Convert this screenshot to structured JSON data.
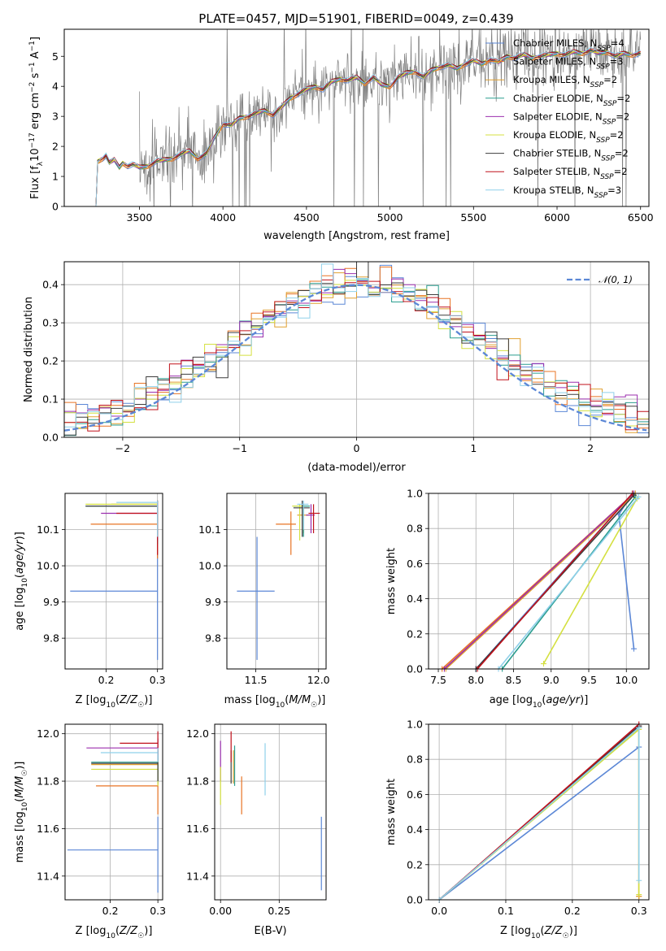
{
  "figure": {
    "title": "PLATE=0457, MJD=51901, FIBERID=0049, z=0.439"
  },
  "models": [
    {
      "name": "Chabrier MILES",
      "nssp": "4",
      "color": "#5b87d6"
    },
    {
      "name": "Salpeter MILES",
      "nssp": "3",
      "color": "#e87424"
    },
    {
      "name": "Kroupa MILES",
      "nssp": "2",
      "color": "#e0a030"
    },
    {
      "name": "Chabrier ELODIE",
      "nssp": "2",
      "color": "#2a9d8f"
    },
    {
      "name": "Salpeter ELODIE",
      "nssp": "2",
      "color": "#9b2fae"
    },
    {
      "name": "Kroupa ELODIE",
      "nssp": "2",
      "color": "#d4e040"
    },
    {
      "name": "Chabrier STELIB",
      "nssp": "2",
      "color": "#3d3d3d"
    },
    {
      "name": "Salpeter STELIB",
      "nssp": "2",
      "color": "#c0101a"
    },
    {
      "name": "Kroupa STELIB",
      "nssp": "3",
      "color": "#8fd0ea"
    }
  ],
  "chart_data": [
    {
      "id": "spectrum",
      "type": "line",
      "title": "PLATE=0457, MJD=51901, FIBERID=0049, z=0.439",
      "xlabel": "wavelength [Angstrom, rest frame]",
      "ylabel": "Flux [f_λ 10^-17 erg cm^-2 s^-1 A^-1]",
      "xlim": [
        3050,
        6550
      ],
      "ylim": [
        0,
        5.9
      ],
      "xticks": [
        3500,
        4000,
        4500,
        5000,
        5500,
        6000,
        6500
      ],
      "yticks": [
        0,
        1,
        2,
        3,
        4,
        5
      ],
      "data_color": "#808080",
      "model_curve": {
        "x": [
          3200,
          3245,
          3250,
          3280,
          3300,
          3320,
          3350,
          3380,
          3400,
          3430,
          3460,
          3500,
          3550,
          3600,
          3650,
          3700,
          3750,
          3800,
          3850,
          3900,
          3950,
          4000,
          4050,
          4100,
          4150,
          4200,
          4250,
          4300,
          4350,
          4400,
          4450,
          4500,
          4550,
          4600,
          4650,
          4700,
          4750,
          4800,
          4850,
          4900,
          4950,
          5000,
          5050,
          5100,
          5150,
          5200,
          5250,
          5300,
          5350,
          5400,
          5450,
          5500,
          5550,
          5600,
          5650,
          5700,
          5750,
          5800,
          5850,
          5900,
          5950,
          6000,
          6050,
          6100,
          6150,
          6200,
          6250,
          6300,
          6350,
          6400,
          6450,
          6500
        ],
        "y": [
          0,
          0,
          1.5,
          1.6,
          1.7,
          1.45,
          1.55,
          1.3,
          1.45,
          1.35,
          1.4,
          1.3,
          1.35,
          1.5,
          1.55,
          1.6,
          1.75,
          1.85,
          1.6,
          1.75,
          2.3,
          2.75,
          2.7,
          2.95,
          3.0,
          3.1,
          3.2,
          3.05,
          3.3,
          3.6,
          3.75,
          3.9,
          4.0,
          3.9,
          4.15,
          4.25,
          4.2,
          4.3,
          4.1,
          4.3,
          4.05,
          4.0,
          4.3,
          4.45,
          4.5,
          4.3,
          4.55,
          4.65,
          4.7,
          4.6,
          4.75,
          4.85,
          4.75,
          4.9,
          4.8,
          5.0,
          4.95,
          5.05,
          4.95,
          5.0,
          5.05,
          5.1,
          5.05,
          5.15,
          5.1,
          5.2,
          5.1,
          5.15,
          5.0,
          5.1,
          5.05,
          5.1
        ]
      }
    },
    {
      "id": "residuals",
      "type": "histogram",
      "xlabel": "(data-model)/error",
      "ylabel": "Normed distribution",
      "xlim": [
        -2.5,
        2.5
      ],
      "ylim": [
        0,
        0.46
      ],
      "xticks": [
        -2,
        -1,
        0,
        1,
        2
      ],
      "yticks": [
        0.0,
        0.1,
        0.2,
        0.3,
        0.4
      ],
      "legend": "𝒩(0, 1)",
      "gaussian": {
        "mean": 0,
        "sigma": 1,
        "style": "dashed",
        "color": "#5b87d6"
      },
      "bin_width": 0.1
    },
    {
      "id": "age_vs_Z",
      "type": "errorbar",
      "xlabel": "Z [log10(Z/Z☉)]",
      "ylabel": "age [log10(age/yr)]",
      "xlim": [
        0.12,
        0.31
      ],
      "ylim": [
        9.715,
        10.2
      ],
      "xticks": [
        0.2,
        0.3
      ],
      "yticks": [
        9.8,
        9.9,
        10.0,
        10.1
      ],
      "points": [
        {
          "x": 0.3,
          "y": 9.93,
          "xlo": 0.13,
          "xhi": 0.3,
          "ylo": 9.74,
          "yhi": 10.08
        },
        {
          "x": 0.3,
          "y": 10.115,
          "xlo": 0.17,
          "xhi": 0.3,
          "ylo": 10.02,
          "yhi": 10.16
        },
        {
          "x": 0.3,
          "y": 10.17,
          "xlo": 0.21,
          "xhi": 0.3,
          "ylo": 10.1,
          "yhi": 10.18
        },
        {
          "x": 0.3,
          "y": 10.165,
          "xlo": 0.16,
          "xhi": 0.3,
          "ylo": 10.06,
          "yhi": 10.17
        },
        {
          "x": 0.3,
          "y": 10.145,
          "xlo": 0.19,
          "xhi": 0.3,
          "ylo": 10.07,
          "yhi": 10.17
        },
        {
          "x": 0.3,
          "y": 10.17,
          "xlo": 0.16,
          "xhi": 0.3,
          "ylo": 10.1,
          "yhi": 10.18
        },
        {
          "x": 0.3,
          "y": 10.165,
          "xlo": 0.16,
          "xhi": 0.3,
          "ylo": 10.08,
          "yhi": 10.18
        },
        {
          "x": 0.3,
          "y": 10.145,
          "xlo": 0.22,
          "xhi": 0.3,
          "ylo": 10.03,
          "yhi": 10.18
        },
        {
          "x": 0.3,
          "y": 10.175,
          "xlo": 0.22,
          "xhi": 0.3,
          "ylo": 10.08,
          "yhi": 10.18
        }
      ]
    },
    {
      "id": "age_vs_mass",
      "type": "errorbar",
      "xlabel": "mass [log10(M/M☉)]",
      "ylabel": "",
      "xlim": [
        11.27,
        12.06
      ],
      "ylim": [
        9.715,
        10.2
      ],
      "xticks": [
        11.5,
        12.0
      ],
      "yticks": [
        9.8,
        9.9,
        10.0,
        10.1
      ],
      "points": [
        {
          "x": 11.51,
          "y": 9.93,
          "xlo": 11.35,
          "xhi": 11.65,
          "ylo": 9.74,
          "yhi": 10.08
        },
        {
          "x": 11.78,
          "y": 10.115,
          "xlo": 11.66,
          "xhi": 11.82,
          "ylo": 10.03,
          "yhi": 10.15
        },
        {
          "x": 11.88,
          "y": 10.14,
          "xlo": 11.83,
          "xhi": 11.92,
          "ylo": 10.09,
          "yhi": 10.17
        },
        {
          "x": 11.88,
          "y": 10.165,
          "xlo": 11.8,
          "xhi": 11.93,
          "ylo": 10.08,
          "yhi": 10.17
        },
        {
          "x": 11.94,
          "y": 10.14,
          "xlo": 11.9,
          "xhi": 11.97,
          "ylo": 10.09,
          "yhi": 10.17
        },
        {
          "x": 11.85,
          "y": 10.165,
          "xlo": 11.79,
          "xhi": 11.88,
          "ylo": 10.07,
          "yhi": 10.17
        },
        {
          "x": 11.87,
          "y": 10.16,
          "xlo": 11.8,
          "xhi": 11.93,
          "ylo": 10.08,
          "yhi": 10.18
        },
        {
          "x": 11.96,
          "y": 10.145,
          "xlo": 11.92,
          "xhi": 12.01,
          "ylo": 10.09,
          "yhi": 10.17
        },
        {
          "x": 11.88,
          "y": 10.17,
          "xlo": 11.83,
          "xhi": 11.92,
          "ylo": 10.1,
          "yhi": 10.18
        }
      ]
    },
    {
      "id": "massweight_vs_age",
      "type": "line",
      "xlabel": "age [log10(age/yr)]",
      "ylabel": "mass weight",
      "xlim": [
        7.37,
        10.3
      ],
      "ylim": [
        0,
        1.0
      ],
      "xticks": [
        7.5,
        8.0,
        8.5,
        9.0,
        9.5,
        10.0
      ],
      "yticks": [
        0.0,
        0.2,
        0.4,
        0.6,
        0.8,
        1.0
      ],
      "series": [
        {
          "x": [
            8.0,
            10.08,
            9.9,
            10.1
          ],
          "y": [
            0.0,
            1.0,
            0.88,
            0.115
          ]
        },
        {
          "x": [
            7.55,
            10.1
          ],
          "y": [
            0.0,
            1.0
          ]
        },
        {
          "x": [
            7.6,
            10.12
          ],
          "y": [
            0.0,
            1.0
          ]
        },
        {
          "x": [
            8.35,
            10.12
          ],
          "y": [
            0.0,
            0.98
          ]
        },
        {
          "x": [
            7.58,
            10.1
          ],
          "y": [
            0.0,
            1.0
          ]
        },
        {
          "x": [
            8.9,
            10.14
          ],
          "y": [
            0.03,
            0.97
          ]
        },
        {
          "x": [
            8.0,
            10.1
          ],
          "y": [
            0.0,
            0.99
          ]
        },
        {
          "x": [
            8.02,
            10.08
          ],
          "y": [
            0.0,
            1.0
          ]
        },
        {
          "x": [
            8.3,
            10.16
          ],
          "y": [
            0.0,
            0.98
          ]
        }
      ]
    },
    {
      "id": "mass_vs_Z",
      "type": "errorbar",
      "xlabel": "Z [log10(Z/Z☉)]",
      "ylabel": "mass [log10(M/M☉)]",
      "xlim": [
        0.105,
        0.31
      ],
      "ylim": [
        11.3,
        12.04
      ],
      "xticks": [
        0.2,
        0.3
      ],
      "yticks": [
        11.4,
        11.6,
        11.8,
        12.0
      ],
      "points": [
        {
          "x": 0.3,
          "y": 11.51,
          "xlo": 0.11,
          "xhi": 0.3,
          "ylo": 11.33,
          "yhi": 11.65
        },
        {
          "x": 0.3,
          "y": 11.78,
          "xlo": 0.17,
          "xhi": 0.3,
          "ylo": 11.66,
          "yhi": 11.82
        },
        {
          "x": 0.3,
          "y": 11.87,
          "xlo": 0.16,
          "xhi": 0.3,
          "ylo": 11.8,
          "yhi": 11.9
        },
        {
          "x": 0.3,
          "y": 11.88,
          "xlo": 0.16,
          "xhi": 0.3,
          "ylo": 11.79,
          "yhi": 11.91
        },
        {
          "x": 0.3,
          "y": 11.94,
          "xlo": 0.15,
          "xhi": 0.3,
          "ylo": 11.89,
          "yhi": 11.98
        },
        {
          "x": 0.3,
          "y": 11.85,
          "xlo": 0.16,
          "xhi": 0.3,
          "ylo": 11.78,
          "yhi": 11.89
        },
        {
          "x": 0.3,
          "y": 11.875,
          "xlo": 0.16,
          "xhi": 0.3,
          "ylo": 11.8,
          "yhi": 11.93
        },
        {
          "x": 0.3,
          "y": 11.96,
          "xlo": 0.22,
          "xhi": 0.3,
          "ylo": 11.91,
          "yhi": 12.01
        },
        {
          "x": 0.3,
          "y": 11.92,
          "xlo": 0.18,
          "xhi": 0.3,
          "ylo": 11.88,
          "yhi": 11.94
        }
      ]
    },
    {
      "id": "mass_vs_ebv",
      "type": "errorbar",
      "xlabel": "E(B-V)",
      "ylabel": "",
      "xlim": [
        -0.025,
        0.45
      ],
      "ylim": [
        11.3,
        12.04
      ],
      "xticks": [
        0.0,
        0.25
      ],
      "yticks": [
        11.4,
        11.6,
        11.8,
        12.0
      ],
      "points": [
        {
          "x": 0.43,
          "y": 11.51,
          "ylo": 11.34,
          "yhi": 11.65
        },
        {
          "x": 0.09,
          "y": 11.76,
          "ylo": 11.66,
          "yhi": 11.82
        },
        {
          "x": 0.055,
          "y": 11.88,
          "ylo": 11.79,
          "yhi": 11.93
        },
        {
          "x": 0.06,
          "y": 11.86,
          "ylo": 11.78,
          "yhi": 11.95
        },
        {
          "x": 0.0,
          "y": 11.9,
          "ylo": 11.8,
          "yhi": 11.97
        },
        {
          "x": 0.0,
          "y": 11.82,
          "ylo": 11.7,
          "yhi": 11.86
        },
        {
          "x": 0.045,
          "y": 11.88,
          "ylo": 11.79,
          "yhi": 11.93
        },
        {
          "x": 0.045,
          "y": 11.94,
          "ylo": 11.88,
          "yhi": 12.01
        },
        {
          "x": 0.19,
          "y": 11.85,
          "ylo": 11.74,
          "yhi": 11.96
        }
      ]
    },
    {
      "id": "massweight_vs_Z",
      "type": "line",
      "xlabel": "Z [log10(Z/Z☉)]",
      "ylabel": "mass weight",
      "xlim": [
        -0.016,
        0.315
      ],
      "ylim": [
        0,
        1.0
      ],
      "xticks": [
        0.0,
        0.1,
        0.2,
        0.3
      ],
      "yticks": [
        0.0,
        0.2,
        0.4,
        0.6,
        0.8,
        1.0
      ],
      "series": [
        {
          "x": [
            0.0,
            0.3
          ],
          "y": [
            0.0,
            0.87
          ]
        },
        {
          "x": [
            0.0,
            0.3,
            0.3
          ],
          "y": [
            0.0,
            0.98,
            0.02
          ]
        },
        {
          "x": [
            0.0,
            0.3,
            0.3
          ],
          "y": [
            0.0,
            0.99,
            0.02
          ]
        },
        {
          "x": [
            0.0,
            0.3
          ],
          "y": [
            0.0,
            0.98
          ]
        },
        {
          "x": [
            0.0,
            0.3
          ],
          "y": [
            0.0,
            0.99
          ]
        },
        {
          "x": [
            0.0,
            0.3,
            0.3
          ],
          "y": [
            0.0,
            0.97,
            0.03
          ]
        },
        {
          "x": [
            0.0,
            0.3
          ],
          "y": [
            0.0,
            0.99
          ]
        },
        {
          "x": [
            0.0,
            0.3
          ],
          "y": [
            0.0,
            1.0
          ]
        },
        {
          "x": [
            0.0,
            0.3,
            0.3
          ],
          "y": [
            0.0,
            0.98,
            0.11
          ]
        }
      ]
    }
  ]
}
